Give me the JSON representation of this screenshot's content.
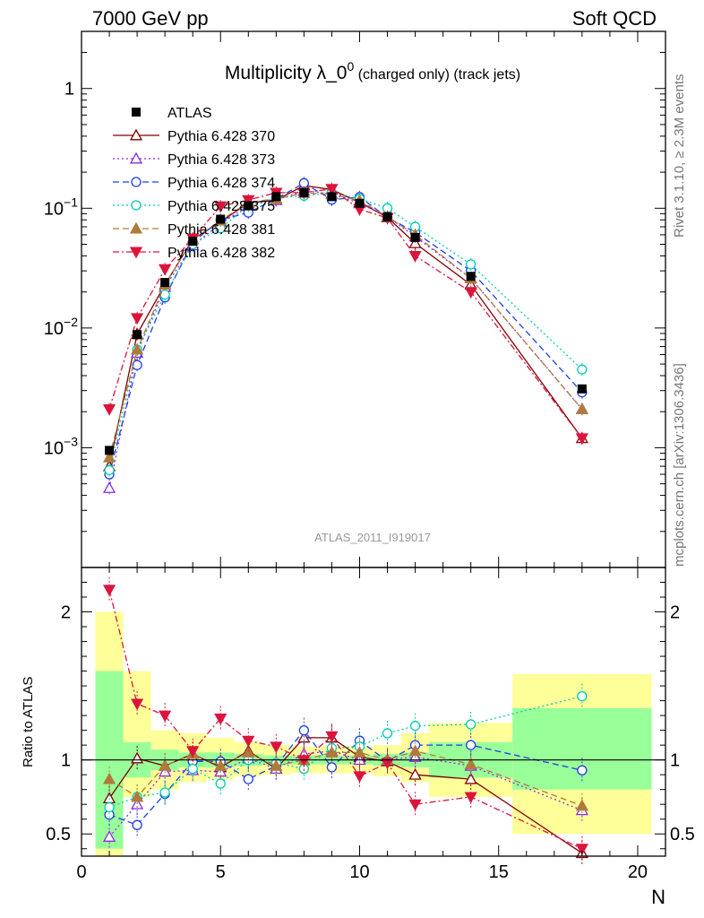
{
  "header": {
    "left": "7000 GeV pp",
    "right": "Soft QCD"
  },
  "side_labels": {
    "top": "Rivet 3.1.10, ≥ 2.3M events",
    "bottom": "mcplots.cern.ch [arXiv:1306.3436]"
  },
  "chart_data": {
    "type": "scatter",
    "title_main": "Multiplicity λ_0",
    "title_sup": "0",
    "title_suffix": " (charged only) (track jets)",
    "analysis": "ATLAS_2011_I919017",
    "xlabel": "N",
    "ylabel_ratio": "Ratio to ATLAS",
    "xlim": [
      0,
      21
    ],
    "ylim_main": [
      0.0001,
      3
    ],
    "ylim_ratio": [
      0.35,
      2.3
    ],
    "yscale_main": "log",
    "x_ticks": [
      0,
      5,
      10,
      15,
      20
    ],
    "main_y_ticks": [
      {
        "value": 1,
        "label": "1",
        "sup": ""
      },
      {
        "value": 0.1,
        "label": "10",
        "sup": "−1"
      },
      {
        "value": 0.01,
        "label": "10",
        "sup": "−2"
      },
      {
        "value": 0.001,
        "label": "10",
        "sup": "−3"
      }
    ],
    "ratio_y_ticks": [
      {
        "value": 2,
        "label": "2"
      },
      {
        "value": 1,
        "label": "1"
      },
      {
        "value": 0.5,
        "label": "0.5"
      }
    ],
    "legend_position": "top-left",
    "x": [
      1,
      2,
      3,
      4,
      5,
      6,
      7,
      8,
      9,
      10,
      11,
      12,
      14,
      18
    ],
    "data": {
      "name": "ATLAS",
      "color": "#000000",
      "values": [
        0.00095,
        0.0088,
        0.024,
        0.053,
        0.081,
        0.105,
        0.125,
        0.135,
        0.125,
        0.11,
        0.085,
        0.057,
        0.027,
        0.0031
      ],
      "bins": [
        [
          0.5,
          1.5
        ],
        [
          1.5,
          2.5
        ],
        [
          2.5,
          3.5
        ],
        [
          3.5,
          4.5
        ],
        [
          4.5,
          5.5
        ],
        [
          5.5,
          6.5
        ],
        [
          6.5,
          7.5
        ],
        [
          7.5,
          8.5
        ],
        [
          8.5,
          9.5
        ],
        [
          9.5,
          10.5
        ],
        [
          10.5,
          11.5
        ],
        [
          11.5,
          12.5
        ],
        [
          12.5,
          15.5
        ],
        [
          15.5,
          20.5
        ]
      ],
      "band_stat": [
        [
          0.4,
          1.6
        ],
        [
          0.88,
          1.12
        ],
        [
          0.93,
          1.07
        ],
        [
          0.95,
          1.05
        ],
        [
          0.95,
          1.05
        ],
        [
          0.96,
          1.04
        ],
        [
          0.97,
          1.03
        ],
        [
          0.97,
          1.03
        ],
        [
          0.97,
          1.03
        ],
        [
          0.97,
          1.03
        ],
        [
          0.96,
          1.04
        ],
        [
          0.95,
          1.05
        ],
        [
          0.88,
          1.12
        ],
        [
          0.8,
          1.35
        ]
      ],
      "band_total": [
        [
          0.35,
          2.0
        ],
        [
          0.75,
          1.6
        ],
        [
          0.8,
          1.2
        ],
        [
          0.85,
          1.18
        ],
        [
          0.87,
          1.15
        ],
        [
          0.89,
          1.12
        ],
        [
          0.9,
          1.1
        ],
        [
          0.91,
          1.09
        ],
        [
          0.91,
          1.09
        ],
        [
          0.91,
          1.09
        ],
        [
          0.89,
          1.1
        ],
        [
          0.85,
          1.18
        ],
        [
          0.75,
          1.25
        ],
        [
          0.5,
          1.58
        ]
      ]
    },
    "series": [
      {
        "name": "Pythia 6.428 370",
        "color": "#800000",
        "marker": "triangle-up-open",
        "dash": "",
        "values": [
          0.0007,
          0.0089,
          0.023,
          0.055,
          0.077,
          0.111,
          0.117,
          0.155,
          0.143,
          0.112,
          0.084,
          0.051,
          0.023,
          0.0012
        ],
        "ratio": [
          0.74,
          1.01,
          0.96,
          1.04,
          0.95,
          1.06,
          0.94,
          1.15,
          1.15,
          1.02,
          0.99,
          0.9,
          0.87,
          0.37
        ]
      },
      {
        "name": "Pythia 6.428 373",
        "color": "#8A2BE2",
        "marker": "triangle-up-open",
        "dash": "2,3",
        "values": [
          0.00046,
          0.0062,
          0.022,
          0.049,
          0.074,
          0.106,
          0.117,
          0.14,
          0.132,
          0.11,
          0.085,
          0.058,
          0.026,
          0.0021
        ],
        "ratio": [
          0.48,
          0.7,
          0.92,
          0.93,
          0.92,
          1.01,
          0.94,
          1.04,
          1.06,
          1.0,
          1.0,
          1.02,
          0.96,
          0.66
        ]
      },
      {
        "name": "Pythia 6.428 374",
        "color": "#1E3FE6",
        "marker": "circle-open",
        "dash": "7,4",
        "values": [
          0.0006,
          0.0049,
          0.018,
          0.052,
          0.08,
          0.092,
          0.12,
          0.162,
          0.118,
          0.124,
          0.084,
          0.063,
          0.03,
          0.0029
        ],
        "ratio": [
          0.63,
          0.56,
          0.77,
          0.99,
          0.99,
          0.87,
          0.96,
          1.2,
          0.95,
          1.13,
          0.99,
          1.1,
          1.1,
          0.93
        ]
      },
      {
        "name": "Pythia 6.428 375",
        "color": "#00CDB4",
        "marker": "circle-open",
        "dash": "2,3",
        "values": [
          0.00065,
          0.0066,
          0.019,
          0.05,
          0.068,
          0.105,
          0.122,
          0.127,
          0.135,
          0.12,
          0.1,
          0.07,
          0.034,
          0.0045
        ],
        "ratio": [
          0.68,
          0.75,
          0.78,
          0.94,
          0.84,
          1.0,
          0.98,
          0.94,
          1.08,
          1.09,
          1.18,
          1.23,
          1.24,
          1.43
        ]
      },
      {
        "name": "Pythia 6.428 381",
        "color": "#B07A3A",
        "marker": "triangle-up-filled",
        "dash": "7,4",
        "values": [
          0.00083,
          0.0066,
          0.023,
          0.055,
          0.079,
          0.112,
          0.12,
          0.134,
          0.131,
          0.116,
          0.085,
          0.06,
          0.026,
          0.0021
        ],
        "ratio": [
          0.87,
          0.75,
          0.96,
          1.04,
          0.96,
          1.05,
          0.96,
          1.0,
          1.05,
          1.05,
          1.0,
          1.06,
          0.97,
          0.69
        ]
      },
      {
        "name": "Pythia 6.428 382",
        "color": "#DC143C",
        "marker": "triangle-down-filled",
        "dash": "7,3,2,3",
        "values": [
          0.0021,
          0.0121,
          0.031,
          0.056,
          0.104,
          0.117,
          0.135,
          0.135,
          0.145,
          0.098,
          0.083,
          0.04,
          0.02,
          0.0012
        ],
        "ratio": [
          2.15,
          1.38,
          1.3,
          1.06,
          1.28,
          1.13,
          1.09,
          1.0,
          1.16,
          0.89,
          0.98,
          0.7,
          0.75,
          0.4
        ]
      }
    ]
  }
}
